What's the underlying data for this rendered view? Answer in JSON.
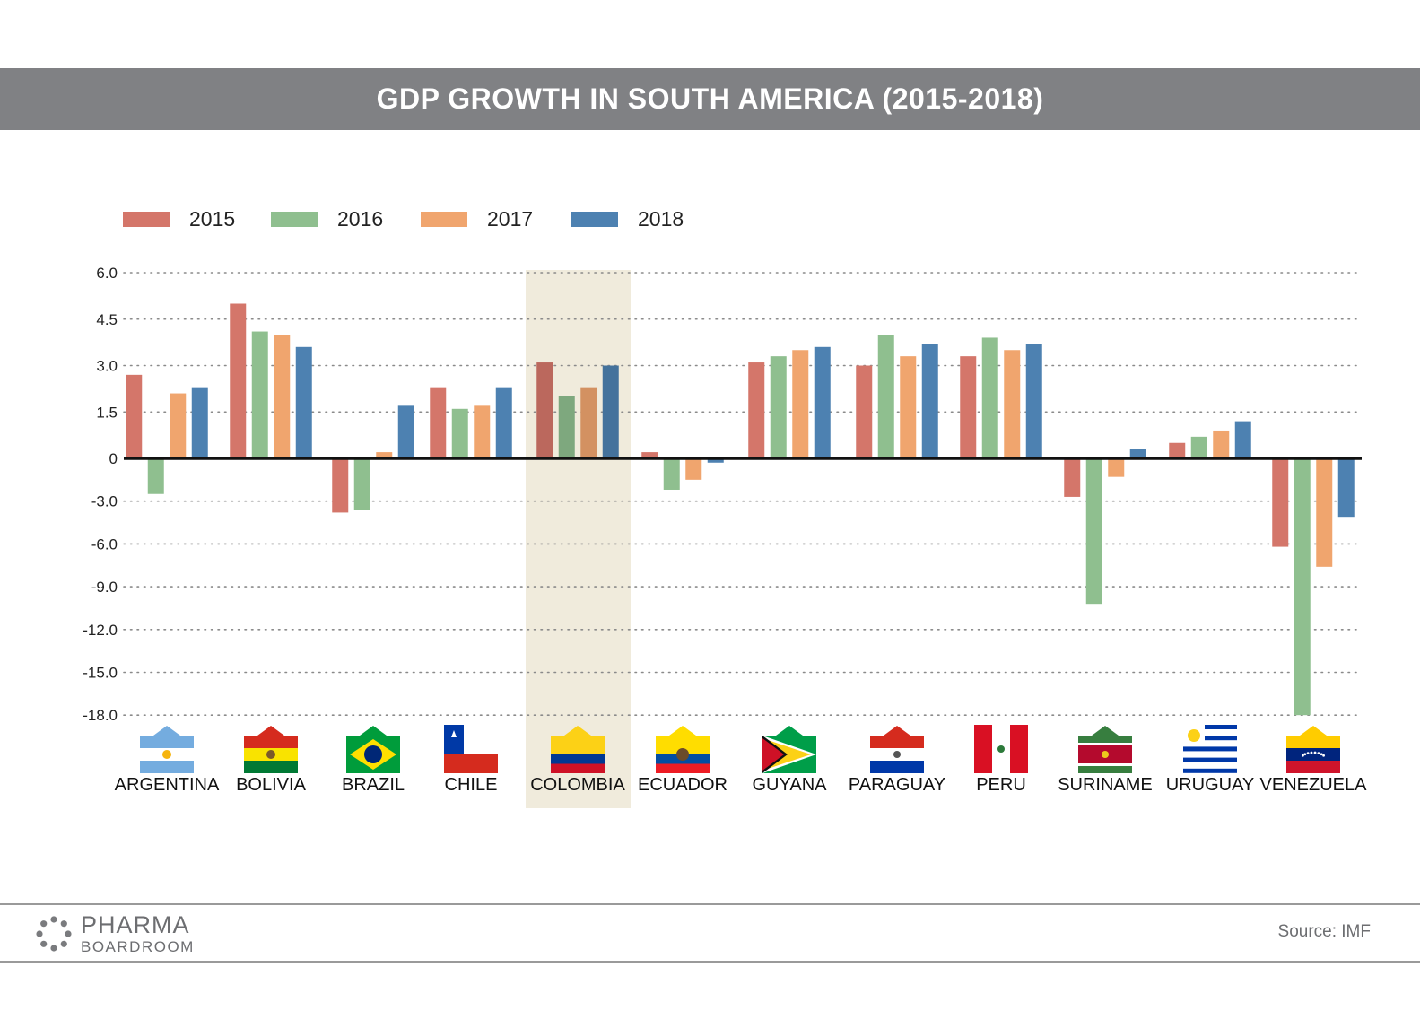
{
  "title": "GDP GROWTH IN SOUTH AMERICA (2015-2018)",
  "source": "Source:  IMF",
  "logo": {
    "main": "PHARMA",
    "sub": "BOARDROOM"
  },
  "chart_data": {
    "type": "bar",
    "categories": [
      "ARGENTINA",
      "BOLIVIA",
      "BRAZIL",
      "CHILE",
      "COLOMBIA",
      "ECUADOR",
      "GUYANA",
      "PARAGUAY",
      "PERU",
      "SURINAME",
      "URUGUAY",
      "VENEZUELA"
    ],
    "highlight": "COLOMBIA",
    "series": [
      {
        "name": "2015",
        "color": "#d4766a",
        "values": [
          2.7,
          5.0,
          -3.8,
          2.3,
          3.1,
          0.2,
          3.1,
          3.0,
          3.3,
          -2.7,
          0.5,
          -6.2
        ]
      },
      {
        "name": "2016",
        "color": "#8fbf8f",
        "values": [
          -2.5,
          4.1,
          -3.6,
          1.6,
          2.0,
          -2.2,
          3.3,
          4.0,
          3.9,
          -10.2,
          0.7,
          -18.0
        ]
      },
      {
        "name": "2017",
        "color": "#f0a56e",
        "values": [
          2.1,
          4.0,
          0.2,
          1.7,
          2.3,
          -1.5,
          3.5,
          3.3,
          3.5,
          -1.3,
          0.9,
          -7.6
        ]
      },
      {
        "name": "2018",
        "color": "#4d81b1",
        "values": [
          2.3,
          3.6,
          1.7,
          2.3,
          3.0,
          -0.3,
          3.6,
          3.7,
          3.7,
          0.3,
          1.2,
          -4.1
        ]
      }
    ],
    "yticks_pos": [
      "6.0",
      "4.5",
      "3.0",
      "1.5",
      "0"
    ],
    "yticks_neg": [
      "-3.0",
      "-6.0",
      "-9.0",
      "-12.0",
      "-15.0",
      "-18.0"
    ],
    "ylim": [
      -18.0,
      6.0
    ],
    "scale_note": "broken scale: positive ticks every 1.5, negative ticks every 3.0",
    "grid": "dotted",
    "legend_position": "top-left"
  }
}
